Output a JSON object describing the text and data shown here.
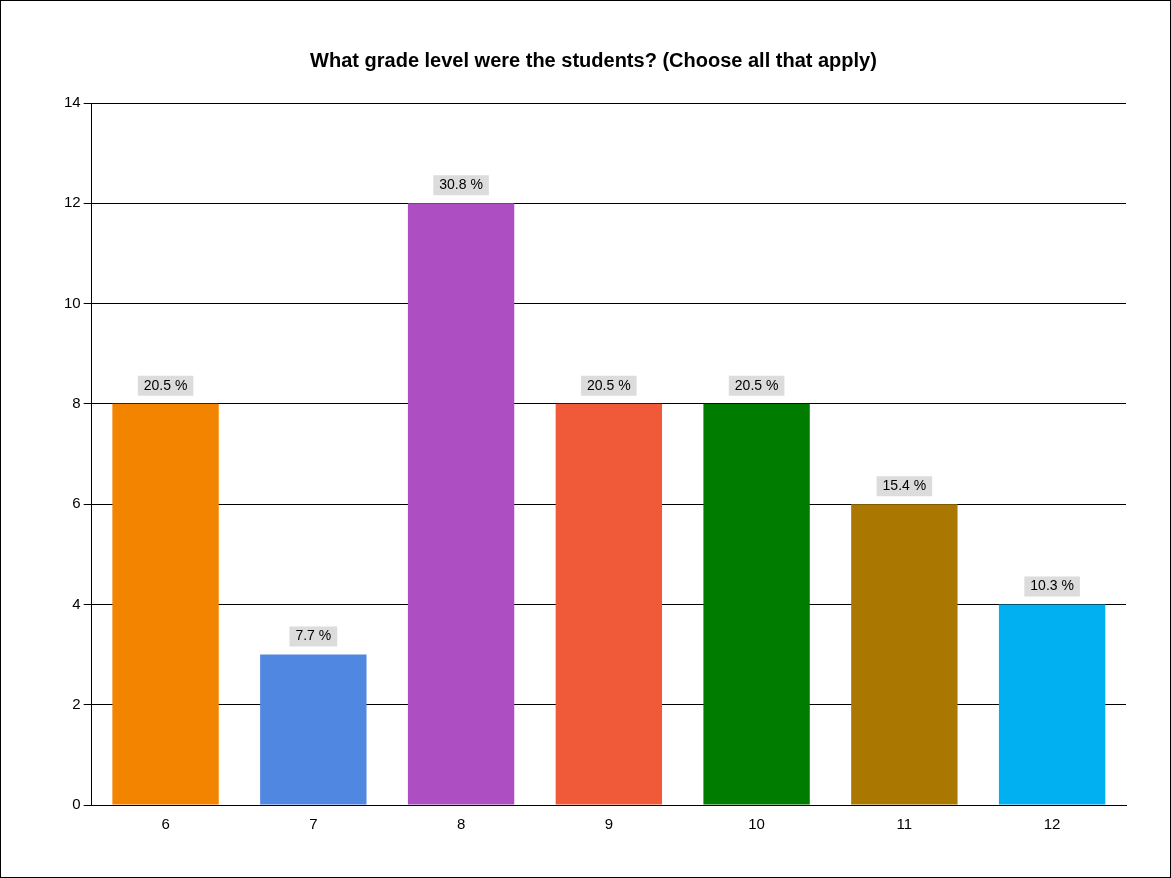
{
  "chart_data": {
    "type": "bar",
    "title": "What grade level were the students? (Choose all that apply)",
    "categories": [
      "6",
      "7",
      "8",
      "9",
      "10",
      "11",
      "12"
    ],
    "values": [
      8,
      3,
      12,
      8,
      8,
      6,
      4
    ],
    "colors": [
      "#f38400",
      "#5087e0",
      "#ad4fc3",
      "#f05a38",
      "#007d00",
      "#aa7800",
      "#00b0f0"
    ],
    "annotations": [
      {
        "text": "20.5 %",
        "x": "6",
        "y": 8
      },
      {
        "text": "7.7 %",
        "x": "7",
        "y": 3
      },
      {
        "text": "30.8 %",
        "x": "8",
        "y": 12
      },
      {
        "text": "20.5 %",
        "x": "9",
        "y": 8
      },
      {
        "text": "20.5 %",
        "x": "10",
        "y": 8
      },
      {
        "text": "15.4 %",
        "x": "11",
        "y": 6
      },
      {
        "text": "10.3 %",
        "x": "12",
        "y": 4
      }
    ],
    "ylim": [
      0,
      14
    ],
    "yticks": [
      0,
      2,
      4,
      6,
      8,
      10,
      12,
      14
    ],
    "grid": "y",
    "legend": false
  }
}
